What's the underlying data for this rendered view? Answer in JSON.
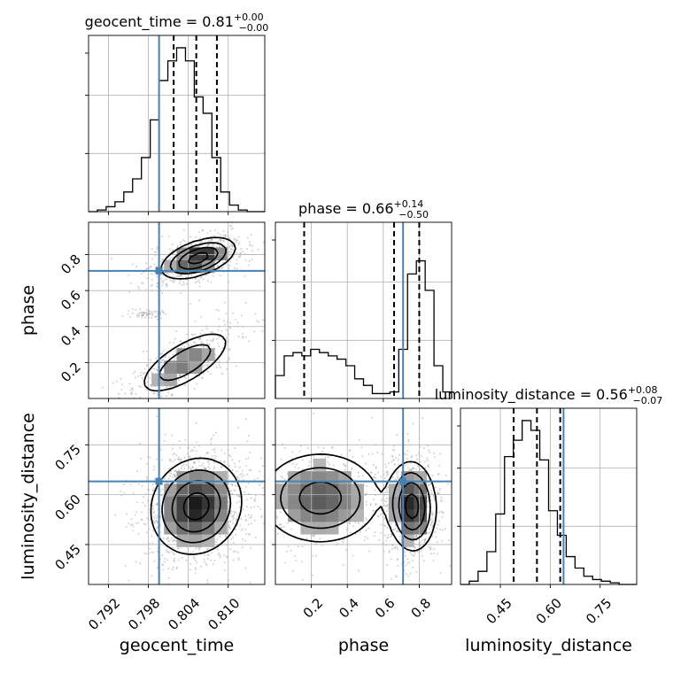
{
  "chart_data": {
    "type": "corner",
    "parameters": [
      {
        "name": "geocent_time",
        "label": "geocent_time",
        "range": [
          0.789,
          0.8155
        ],
        "ticks": [
          0.792,
          0.798,
          0.804,
          0.81
        ],
        "tick_labels": [
          "0.792",
          "0.798",
          "0.804",
          "0.810"
        ],
        "truth": 0.7996,
        "title": "geocent_time = 0.81",
        "title_plus": "+0.00",
        "title_minus": "−0.00",
        "quantiles": [
          0.8018,
          0.8052,
          0.8083
        ],
        "hist_edges": [
          0.7905,
          0.7935,
          0.7965,
          0.7995,
          0.8025,
          0.8055,
          0.8085,
          0.8115,
          0.8145
        ],
        "hist_counts": [
          2,
          8,
          38,
          65,
          100,
          75,
          25,
          4
        ],
        "hist_bins": [
          0.0,
          0.01,
          0.03,
          0.06,
          0.12,
          0.2,
          0.33,
          0.56,
          0.8,
          0.92,
          1.0,
          0.92,
          0.7,
          0.6,
          0.33,
          0.12,
          0.04,
          0.01,
          0.0,
          0.0
        ]
      },
      {
        "name": "phase",
        "label": "phase",
        "range": [
          0.0,
          0.98
        ],
        "ticks": [
          0.2,
          0.4,
          0.6,
          0.8
        ],
        "tick_labels": [
          "0.2",
          "0.4",
          "0.6",
          "0.8"
        ],
        "truth": 0.71,
        "title": "phase = 0.66",
        "title_plus": "+0.14",
        "title_minus": "−0.50",
        "quantiles": [
          0.16,
          0.66,
          0.8
        ],
        "hist_bins": [
          0.14,
          0.26,
          0.28,
          0.26,
          0.3,
          0.28,
          0.26,
          0.24,
          0.2,
          0.12,
          0.08,
          0.03,
          0.03,
          0.04,
          0.3,
          0.76,
          0.84,
          0.66,
          0.2,
          0.04
        ]
      },
      {
        "name": "luminosity_distance",
        "label": "luminosity_distance",
        "range": [
          0.33,
          0.86
        ],
        "ticks": [
          0.45,
          0.6,
          0.75
        ],
        "tick_labels": [
          "0.45",
          "0.60",
          "0.75"
        ],
        "truth": 0.64,
        "title": "luminosity_distance = 0.56",
        "title_plus": "+0.08",
        "title_minus": "−0.07",
        "quantiles": [
          0.49,
          0.56,
          0.63
        ],
        "hist_bins": [
          0.0,
          0.02,
          0.08,
          0.2,
          0.43,
          0.78,
          0.88,
          1.0,
          0.94,
          0.76,
          0.45,
          0.3,
          0.17,
          0.1,
          0.05,
          0.03,
          0.02,
          0.01,
          0.0,
          0.0
        ]
      }
    ],
    "joint": [
      {
        "x": "geocent_time",
        "y": "phase",
        "modes": [
          {
            "x": 0.8055,
            "y": 0.78,
            "sx": 0.0027,
            "sy": 0.055,
            "rho": 0.5,
            "w": 1.0
          },
          {
            "x": 0.8035,
            "y": 0.2,
            "sx": 0.0035,
            "sy": 0.09,
            "rho": 0.7,
            "w": 0.55
          },
          {
            "x": 0.7978,
            "y": 0.47,
            "sx": 0.0012,
            "sy": 0.01,
            "rho": 0.0,
            "w": 0.08
          }
        ]
      },
      {
        "x": "geocent_time",
        "y": "luminosity_distance",
        "modes": [
          {
            "x": 0.8052,
            "y": 0.565,
            "sx": 0.0033,
            "sy": 0.07,
            "rho": 0.1,
            "w": 1.0
          }
        ]
      },
      {
        "x": "phase",
        "y": "luminosity_distance",
        "modes": [
          {
            "x": 0.76,
            "y": 0.565,
            "sx": 0.065,
            "sy": 0.065,
            "rho": -0.05,
            "w": 1.0
          },
          {
            "x": 0.25,
            "y": 0.59,
            "sx": 0.17,
            "sy": 0.07,
            "rho": 0.0,
            "w": 0.7
          }
        ]
      }
    ],
    "grid": true,
    "colors": {
      "truth": "#4682b4",
      "lines": "#000000",
      "samples": "#9a9a9a",
      "grid": "#b0b0b0"
    }
  }
}
